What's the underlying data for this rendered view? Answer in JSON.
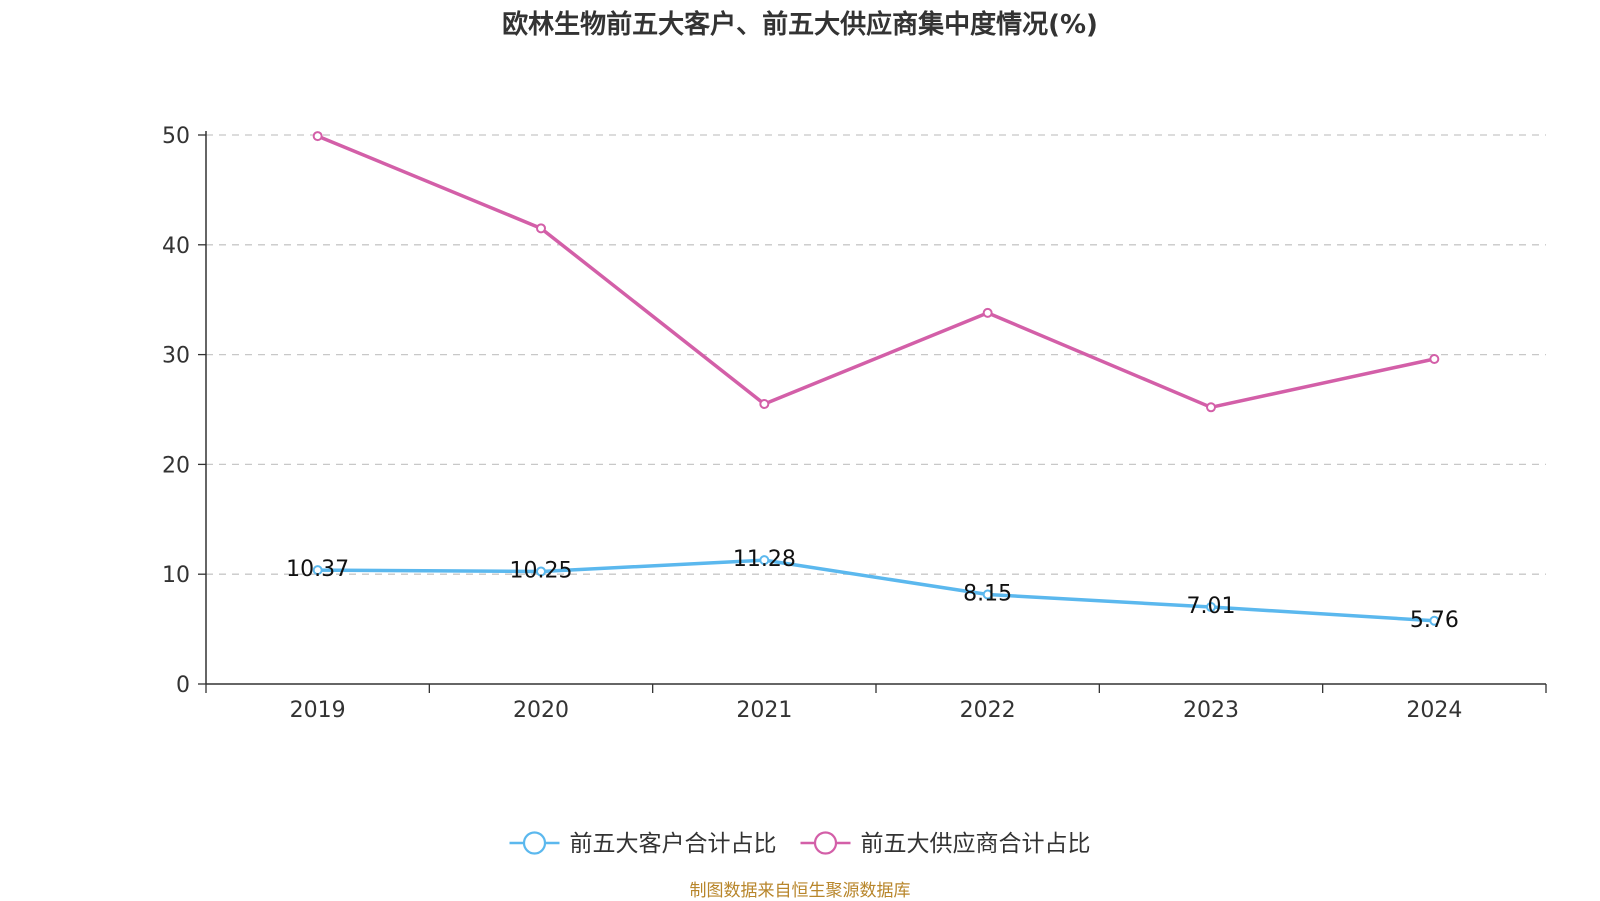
{
  "chart_data": {
    "type": "line",
    "title": "欧林生物前五大客户、前五大供应商集中度情况(%)",
    "categories": [
      "2019",
      "2020",
      "2021",
      "2022",
      "2023",
      "2024"
    ],
    "ylim": [
      0,
      50
    ],
    "yticks": [
      0,
      10,
      20,
      30,
      40,
      50
    ],
    "grid": true,
    "legend_position": "bottom",
    "series": [
      {
        "name": "前五大客户合计占比",
        "color": "#5bb8ee",
        "values": [
          10.37,
          10.25,
          11.28,
          8.15,
          7.01,
          5.76
        ],
        "labels": [
          "10.37",
          "10.25",
          "11.28",
          "8.15",
          "7.01",
          "5.76"
        ]
      },
      {
        "name": "前五大供应商合计占比",
        "color": "#d35fa8",
        "values": [
          49.9,
          41.5,
          25.5,
          33.8,
          25.2,
          29.6
        ]
      }
    ]
  },
  "source_note": "制图数据来自恒生聚源数据库"
}
